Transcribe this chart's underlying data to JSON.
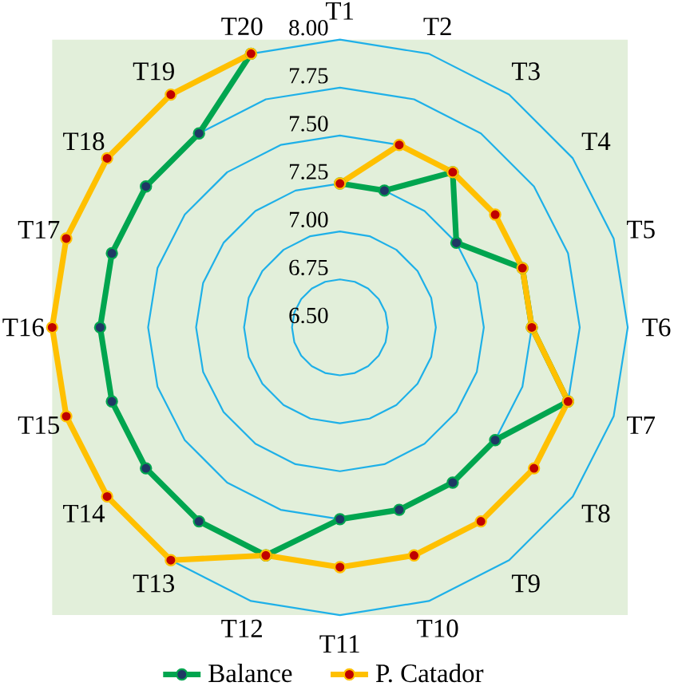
{
  "chart_data": {
    "type": "radar",
    "categories": [
      "T1",
      "T2",
      "T3",
      "T4",
      "T5",
      "T6",
      "T7",
      "T8",
      "T9",
      "T10",
      "T11",
      "T12",
      "T13",
      "T14",
      "T15",
      "T16",
      "T17",
      "T18",
      "T19",
      "T20"
    ],
    "series": [
      {
        "name": "Balance",
        "color": "#00a54f",
        "values": [
          7.25,
          7.25,
          7.5,
          7.25,
          7.5,
          7.5,
          7.75,
          7.5,
          7.5,
          7.5,
          7.5,
          7.75,
          7.75,
          7.75,
          7.75,
          7.75,
          7.75,
          7.75,
          7.75,
          8.0
        ]
      },
      {
        "name": "P. Catador",
        "color": "#ffc000",
        "values": [
          7.25,
          7.5,
          7.5,
          7.5,
          7.5,
          7.5,
          7.75,
          7.75,
          7.75,
          7.75,
          7.75,
          7.75,
          8.0,
          8.0,
          8.0,
          8.0,
          8.0,
          8.0,
          8.0,
          8.0
        ]
      }
    ],
    "ylim": [
      6.5,
      8.0
    ],
    "yticks": [
      {
        "value": 6.5,
        "label": "6.50"
      },
      6.75,
      {
        "value": 7.0,
        "label": "7.00"
      },
      7.25,
      {
        "value": 7.5,
        "label": "7.50"
      },
      7.75,
      {
        "value": 8.0,
        "label": "8.00"
      }
    ],
    "grid": true,
    "legend": "bottom",
    "marker": "circle",
    "line_style": "solid"
  }
}
